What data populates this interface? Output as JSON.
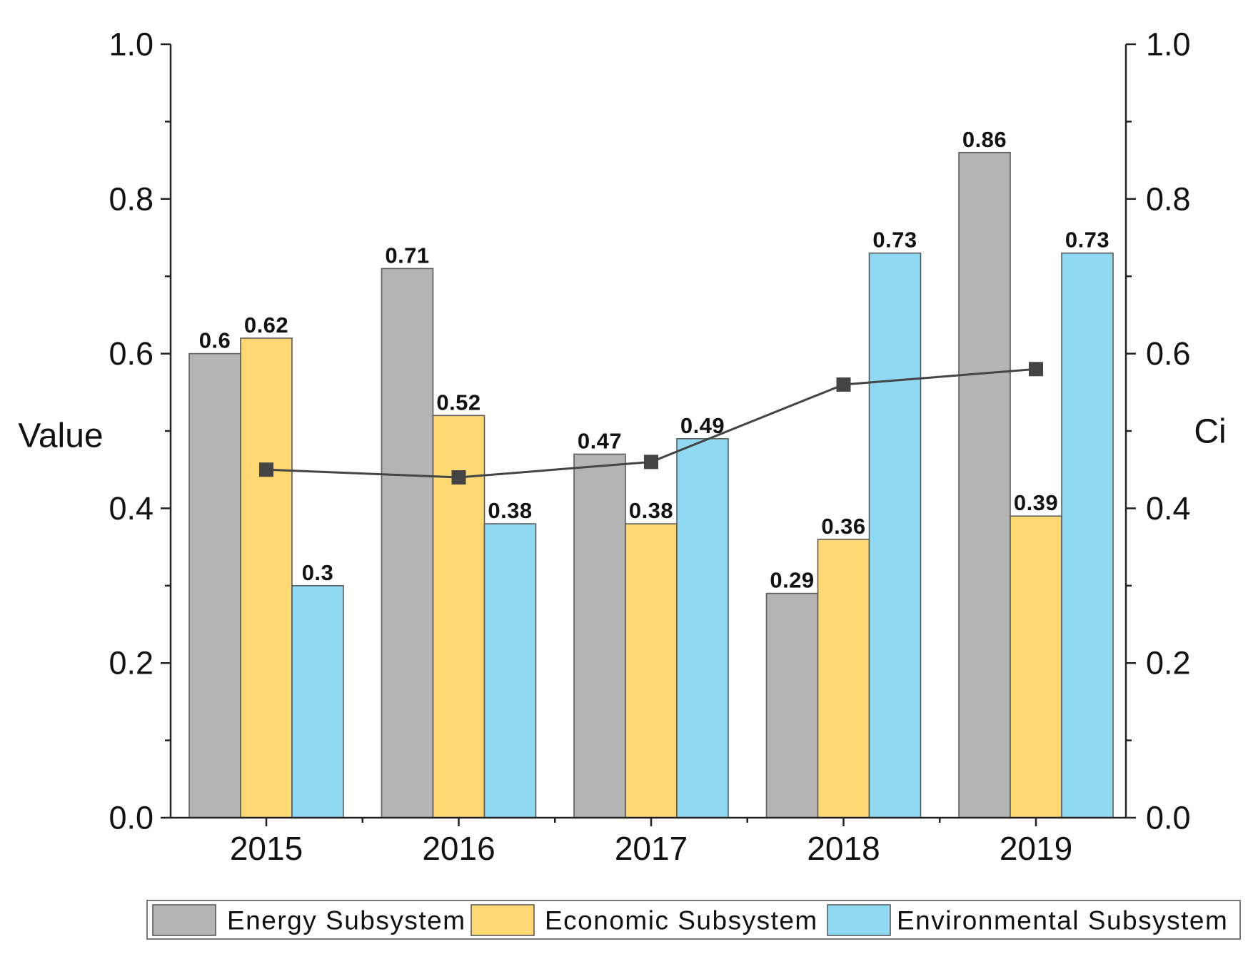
{
  "chart_data": {
    "type": "bar",
    "categories": [
      "2015",
      "2016",
      "2017",
      "2018",
      "2019"
    ],
    "series": [
      {
        "name": "Energy Subsystem",
        "color": "#b4b4b4",
        "values": [
          0.6,
          0.71,
          0.47,
          0.29,
          0.86
        ]
      },
      {
        "name": "Economic Subsystem",
        "color": "#fed873",
        "values": [
          0.62,
          0.52,
          0.38,
          0.36,
          0.39
        ]
      },
      {
        "name": "Environmental Subsystem",
        "color": "#8fd9f2",
        "values": [
          0.3,
          0.38,
          0.49,
          0.73,
          0.73
        ]
      }
    ],
    "line_series": [
      {
        "color": "#444444",
        "values": [
          0.45,
          0.44,
          0.46,
          0.56,
          0.58
        ]
      }
    ],
    "ylabel": "Value",
    "y2label": "Ci",
    "ylim": [
      0,
      1
    ],
    "y2lim": [
      0,
      1
    ],
    "yticks": [
      "0.0",
      "0.2",
      "0.4",
      "0.6",
      "0.8",
      "1.0"
    ],
    "y2ticks": [
      "0.0",
      "0.2",
      "0.4",
      "0.6",
      "0.8",
      "1.0"
    ]
  }
}
